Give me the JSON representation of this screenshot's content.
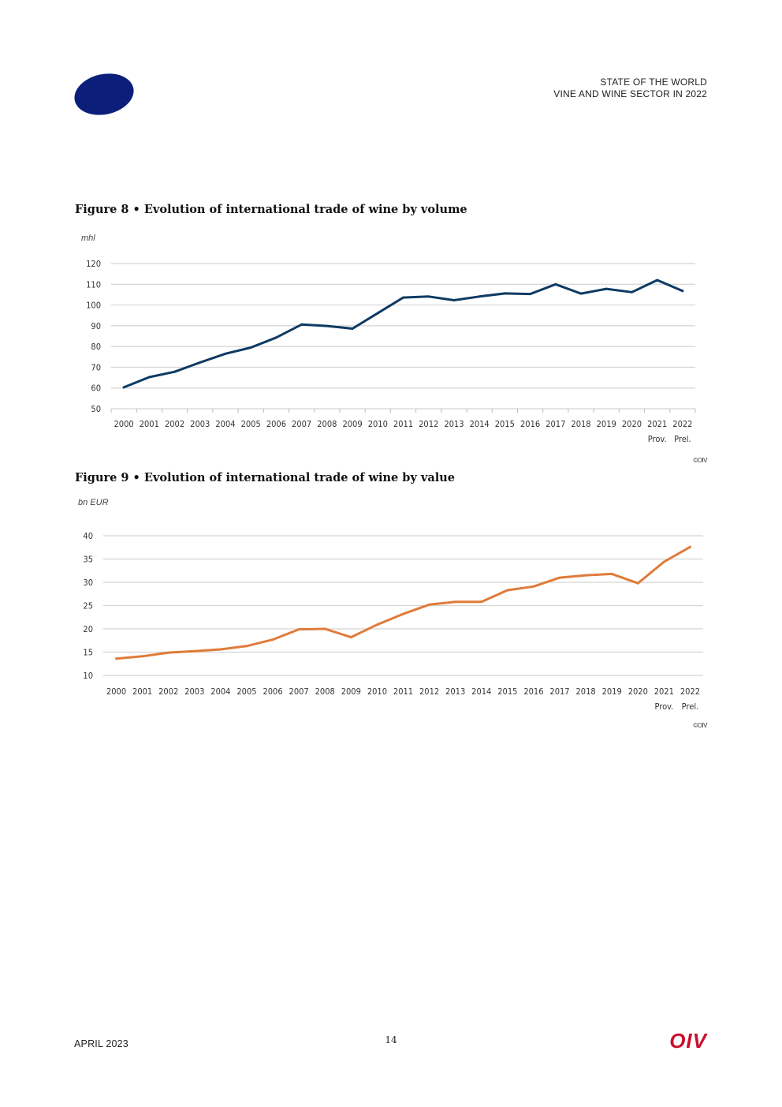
{
  "header": {
    "line1": "STATE OF THE WORLD",
    "line2": "VINE AND WINE SECTOR IN 2022"
  },
  "figures": {
    "fig8": {
      "title": "Figure 8 • Evolution of international trade of wine by volume",
      "unit": "mhl",
      "source": "©OIV"
    },
    "fig9": {
      "title": "Figure 9 • Evolution of international trade of wine by value",
      "unit": "bn EUR",
      "source": "©OIV"
    }
  },
  "chart_data": [
    {
      "type": "line",
      "title": "Figure 8 • Evolution of international trade of wine by volume",
      "ylabel": "mhl",
      "ylim": [
        50,
        120
      ],
      "yticks": [
        50,
        60,
        70,
        80,
        90,
        100,
        110,
        120
      ],
      "categories": [
        "2000",
        "2001",
        "2002",
        "2003",
        "2004",
        "2005",
        "2006",
        "2007",
        "2008",
        "2009",
        "2010",
        "2011",
        "2012",
        "2013",
        "2014",
        "2015",
        "2016",
        "2017",
        "2018",
        "2019",
        "2020",
        "2021",
        "2022"
      ],
      "category_notes": {
        "2021": "Prov.",
        "2022": "Prel."
      },
      "series": [
        {
          "name": "Volume",
          "color": "#0e3a63",
          "values": [
            60.3,
            65.2,
            67.8,
            72.3,
            76.5,
            79.5,
            84.3,
            90.6,
            89.9,
            88.6,
            96.1,
            103.6,
            104.1,
            102.3,
            104.1,
            105.6,
            105.3,
            110.0,
            105.5,
            107.8,
            106.2,
            112.0,
            106.8
          ]
        }
      ]
    },
    {
      "type": "line",
      "title": "Figure 9 • Evolution of international trade of wine by value",
      "ylabel": "bn EUR",
      "ylim": [
        10,
        40
      ],
      "yticks": [
        10,
        15,
        20,
        25,
        30,
        35,
        40
      ],
      "categories": [
        "2000",
        "2001",
        "2002",
        "2003",
        "2004",
        "2005",
        "2006",
        "2007",
        "2008",
        "2009",
        "2010",
        "2011",
        "2012",
        "2013",
        "2014",
        "2015",
        "2016",
        "2017",
        "2018",
        "2019",
        "2020",
        "2021",
        "2022"
      ],
      "category_notes": {
        "2021": "Prov.",
        "2022": "Prel."
      },
      "series": [
        {
          "name": "Value",
          "color": "#e07b39",
          "values": [
            13.6,
            14.1,
            14.9,
            15.2,
            15.6,
            16.3,
            17.7,
            19.9,
            20.0,
            18.2,
            20.9,
            23.2,
            25.2,
            25.8,
            25.8,
            28.3,
            29.1,
            31.0,
            31.5,
            31.8,
            29.8,
            34.4,
            37.6
          ]
        }
      ]
    }
  ],
  "footer": {
    "date": "APRIL 2023",
    "page": "14",
    "logo": "OIV"
  }
}
